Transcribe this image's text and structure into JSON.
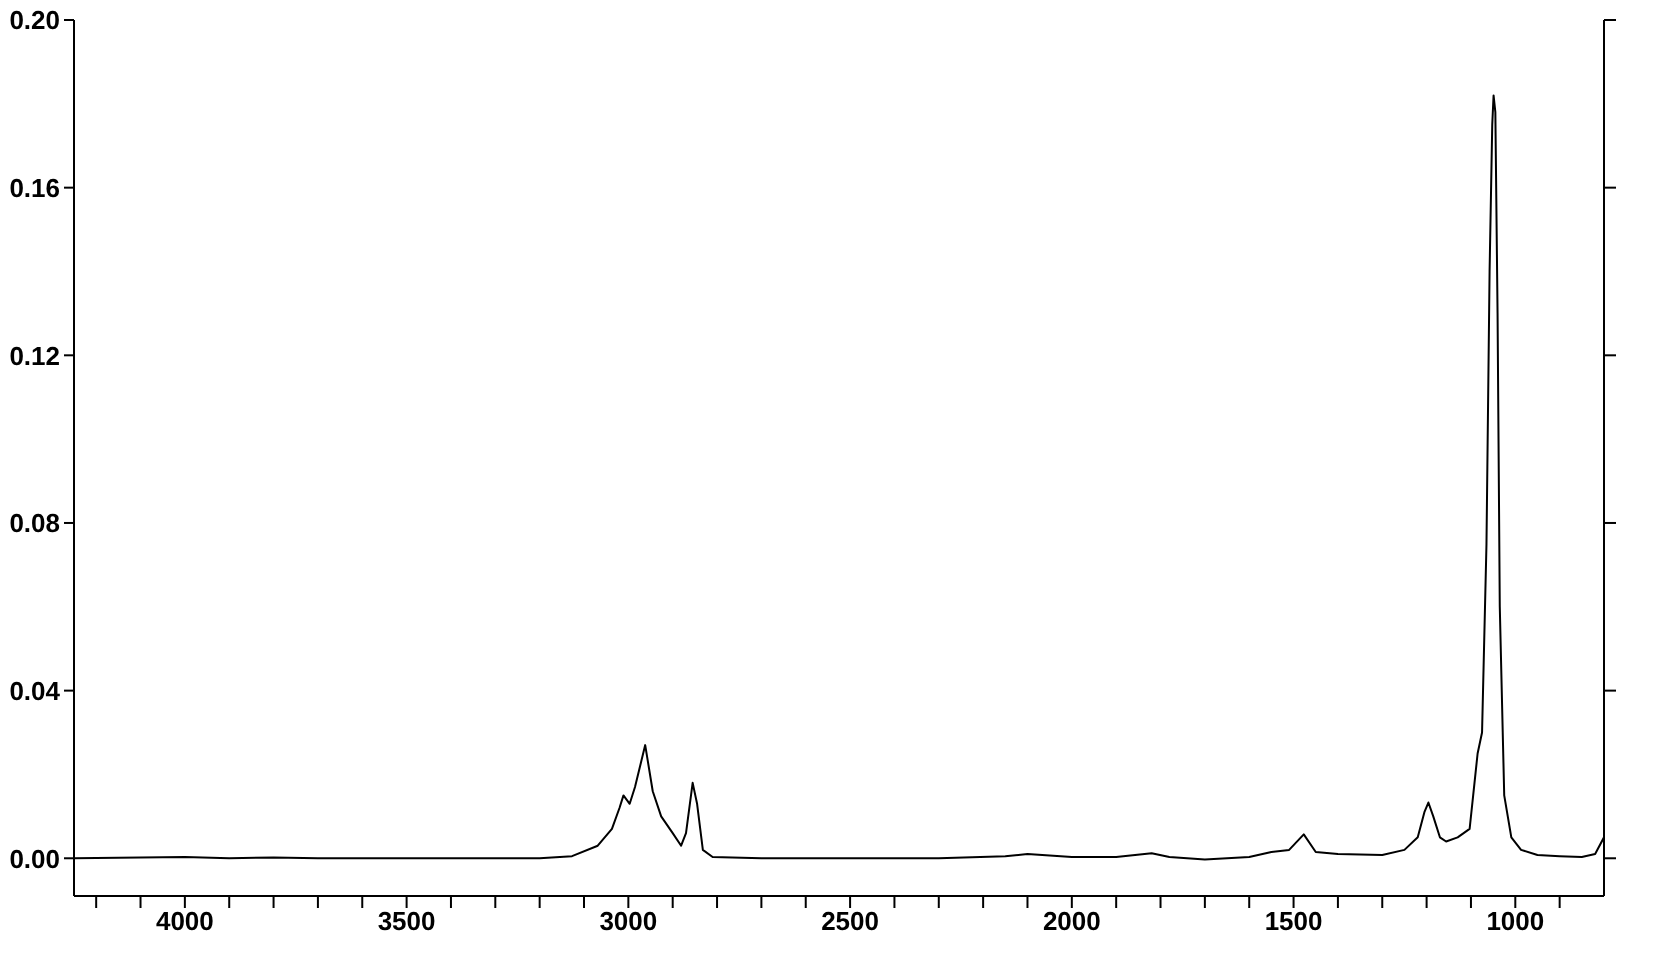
{
  "chart_data": {
    "type": "line",
    "x": [
      4250,
      4000,
      3900,
      3800,
      3700,
      3600,
      3300,
      3200,
      3127,
      3069,
      3037,
      3020,
      3011,
      2997,
      2985,
      2962,
      2945,
      2926,
      2900,
      2881,
      2870,
      2855,
      2845,
      2832,
      2810,
      2700,
      2500,
      2300,
      2150,
      2100,
      2000,
      1900,
      1820,
      1780,
      1700,
      1600,
      1550,
      1510,
      1477,
      1450,
      1400,
      1300,
      1250,
      1220,
      1205,
      1196,
      1185,
      1170,
      1156,
      1130,
      1103,
      1095,
      1085,
      1075,
      1065,
      1058,
      1052,
      1049,
      1045,
      1040,
      1035,
      1025,
      1009,
      987,
      950,
      900,
      850,
      820,
      800
    ],
    "series": [
      {
        "color": "#000000",
        "values": [
          0,
          0.0003,
          0,
          0.0002,
          0,
          0,
          0,
          0,
          0.0005,
          0.003,
          0.007,
          0.012,
          0.015,
          0.013,
          0.017,
          0.027,
          0.016,
          0.01,
          0.006,
          0.003,
          0.006,
          0.018,
          0.013,
          0.002,
          0.0003,
          0,
          0,
          0,
          0.0005,
          0.001,
          0.0003,
          0.0003,
          0.0012,
          0.0003,
          -0.0003,
          0.0003,
          0.0015,
          0.002,
          0.0057,
          0.0015,
          0.001,
          0.0008,
          0.002,
          0.005,
          0.011,
          0.0133,
          0.01,
          0.005,
          0.004,
          0.005,
          0.007,
          0.015,
          0.025,
          0.03,
          0.075,
          0.14,
          0.175,
          0.182,
          0.178,
          0.13,
          0.06,
          0.015,
          0.005,
          0.002,
          0.0008,
          0.0005,
          0.0003,
          0.001,
          0.005
        ]
      }
    ],
    "xlim": [
      4250,
      800
    ],
    "xticks": [
      {
        "value": 4200,
        "label": null
      },
      {
        "value": 4100,
        "label": null
      },
      4000,
      {
        "value": 3900,
        "label": null
      },
      {
        "value": 3800,
        "label": null
      },
      {
        "value": 3700,
        "label": null
      },
      {
        "value": 3600,
        "label": null
      },
      3500,
      {
        "value": 3400,
        "label": null
      },
      {
        "value": 3300,
        "label": null
      },
      {
        "value": 3200,
        "label": null
      },
      {
        "value": 3100,
        "label": null
      },
      3000,
      {
        "value": 2900,
        "label": null
      },
      {
        "value": 2800,
        "label": null
      },
      {
        "value": 2700,
        "label": null
      },
      {
        "value": 2600,
        "label": null
      },
      2500,
      {
        "value": 2400,
        "label": null
      },
      {
        "value": 2300,
        "label": null
      },
      {
        "value": 2200,
        "label": null
      },
      {
        "value": 2100,
        "label": null
      },
      2000,
      {
        "value": 1900,
        "label": null
      },
      {
        "value": 1800,
        "label": null
      },
      {
        "value": 1700,
        "label": null
      },
      {
        "value": 1600,
        "label": null
      },
      1500,
      {
        "value": 1400,
        "label": null
      },
      {
        "value": 1300,
        "label": null
      },
      {
        "value": 1200,
        "label": null
      },
      {
        "value": 1100,
        "label": null
      },
      1000,
      {
        "value": 900,
        "label": null
      }
    ],
    "ylim": [
      -0.009,
      0.2
    ],
    "yticks": [
      {
        "value": 0,
        "label": "0.00"
      },
      {
        "value": 0.04,
        "label": "0.04"
      },
      {
        "value": 0.08,
        "label": "0.08"
      },
      {
        "value": 0.12,
        "label": "0.12"
      },
      {
        "value": 0.16,
        "label": "0.16"
      },
      {
        "value": 0.2,
        "label": "0.20"
      }
    ],
    "grid": false,
    "legend": false,
    "marker": "none",
    "line_style": "solid"
  }
}
